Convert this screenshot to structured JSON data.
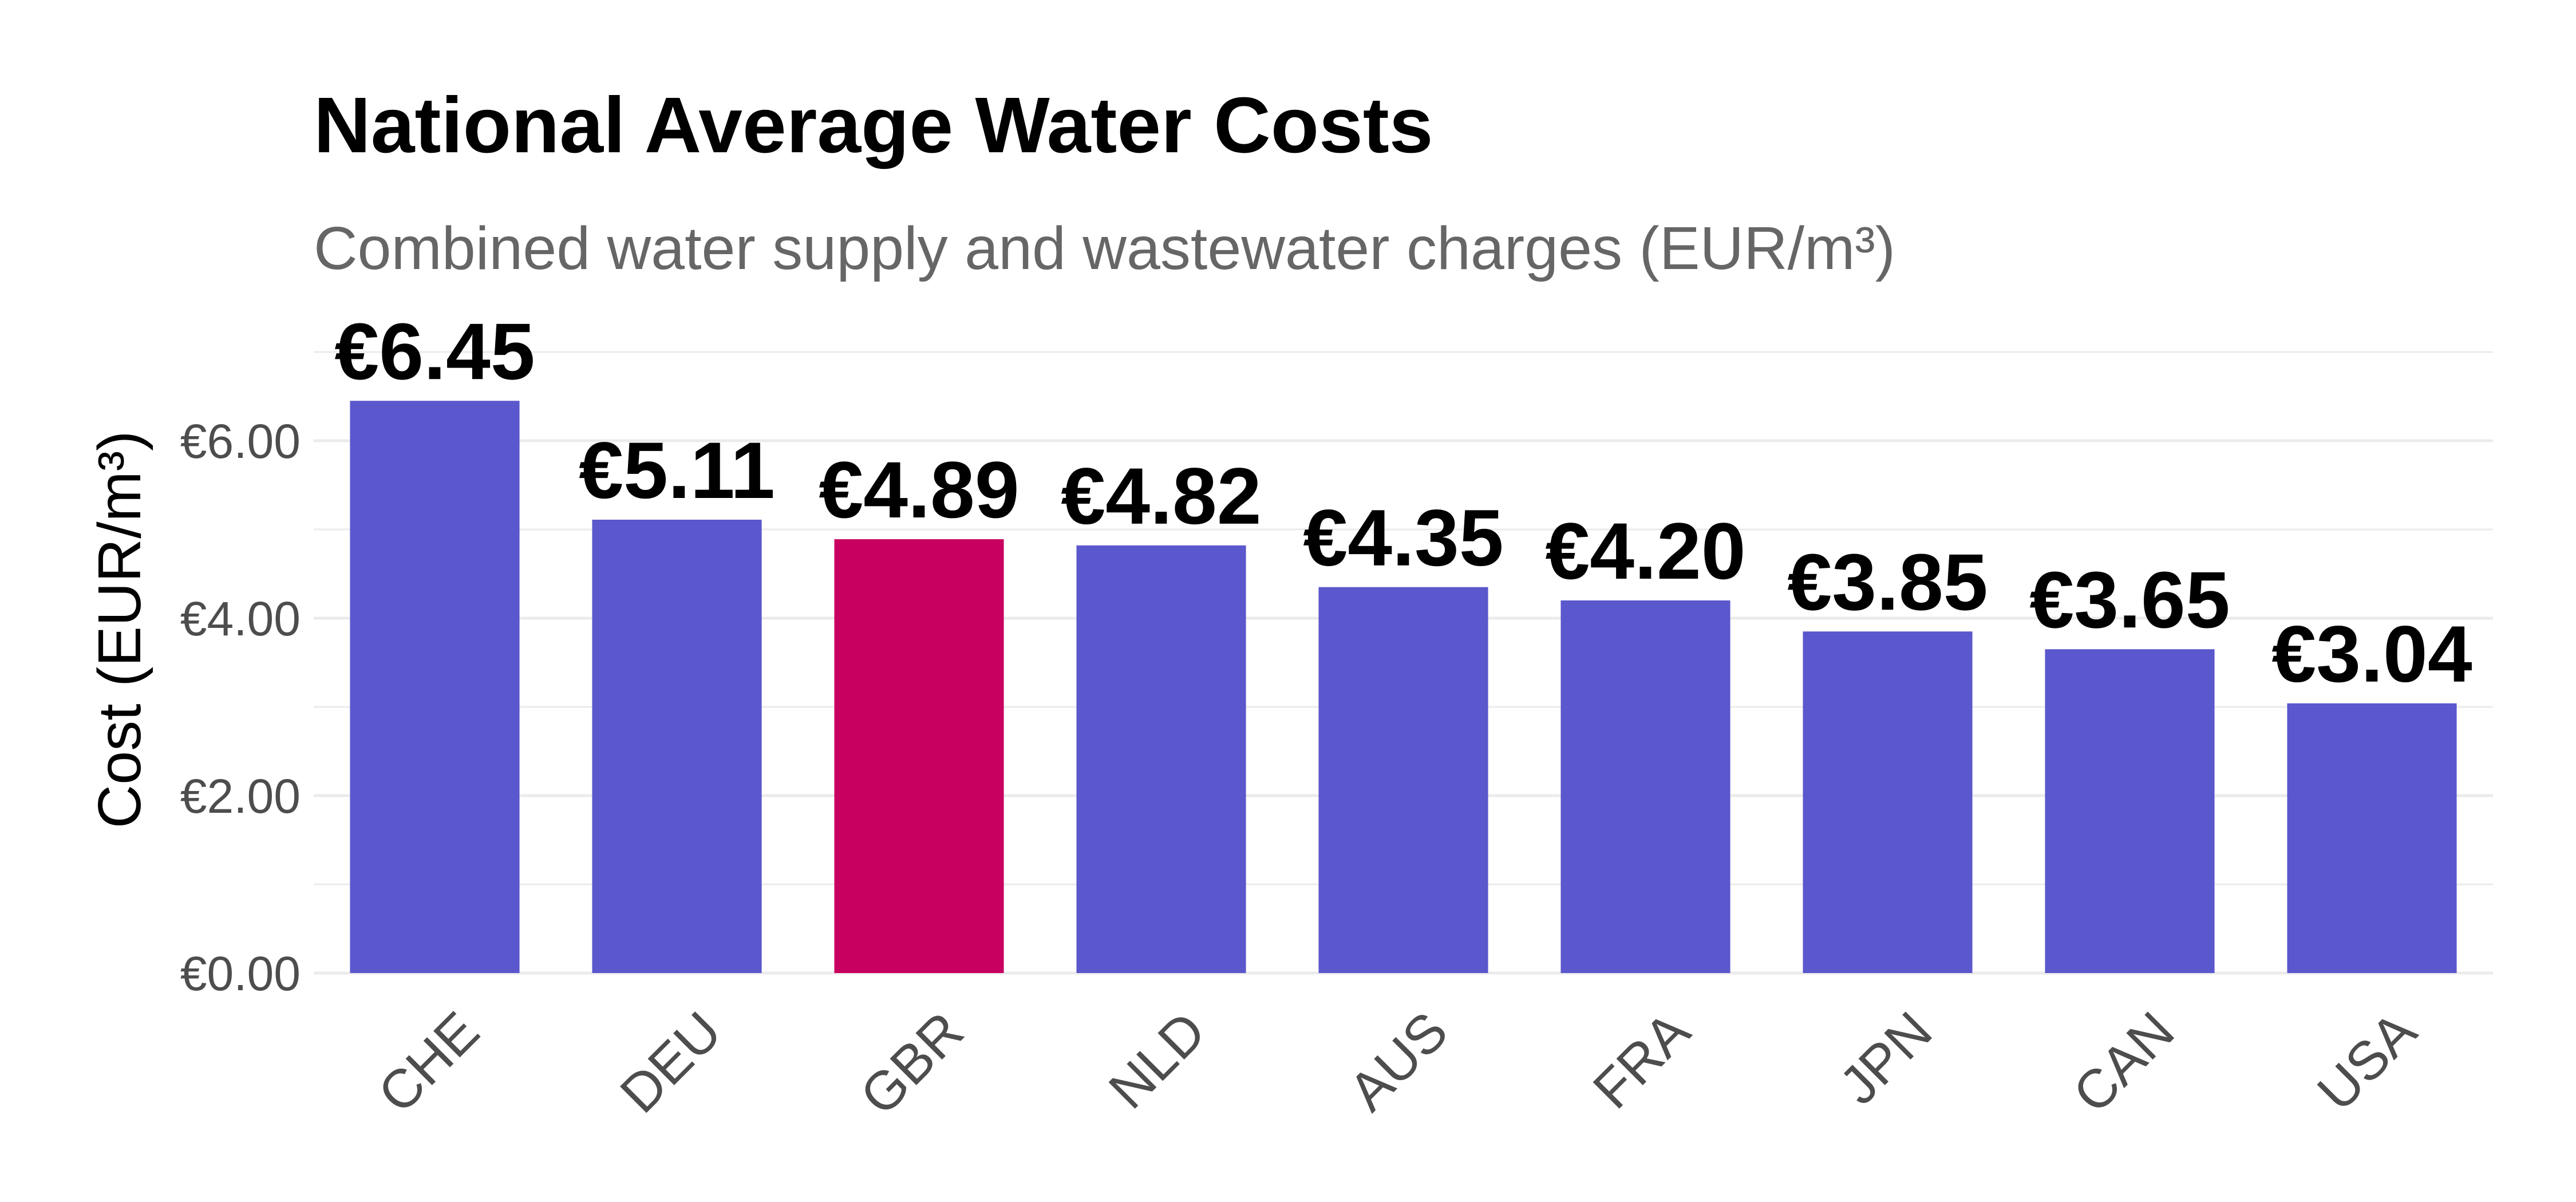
{
  "chart_data": {
    "type": "bar",
    "title": "National Average Water Costs",
    "subtitle": "Combined water supply and wastewater charges (EUR/m³)",
    "ylabel": "Cost (EUR/m³)",
    "xlabel": "",
    "categories": [
      "CHE",
      "DEU",
      "GBR",
      "NLD",
      "AUS",
      "FRA",
      "JPN",
      "CAN",
      "USA"
    ],
    "values": [
      6.45,
      5.11,
      4.89,
      4.82,
      4.35,
      4.2,
      3.85,
      3.65,
      3.04
    ],
    "data_labels": [
      "€6.45",
      "€5.11",
      "€4.89",
      "€4.82",
      "€4.35",
      "€4.20",
      "€3.85",
      "€3.65",
      "€3.04"
    ],
    "highlight": "GBR",
    "ylim": [
      0,
      7
    ],
    "y_ticks": [
      0,
      2,
      4,
      6
    ],
    "y_tick_labels": [
      "€0.00",
      "€2.00",
      "€4.00",
      "€6.00"
    ],
    "grid": true,
    "legend": "none",
    "colors": {
      "bar": "#5b57cc",
      "highlight": "#c8005f",
      "grid": "#ebebeb"
    }
  }
}
